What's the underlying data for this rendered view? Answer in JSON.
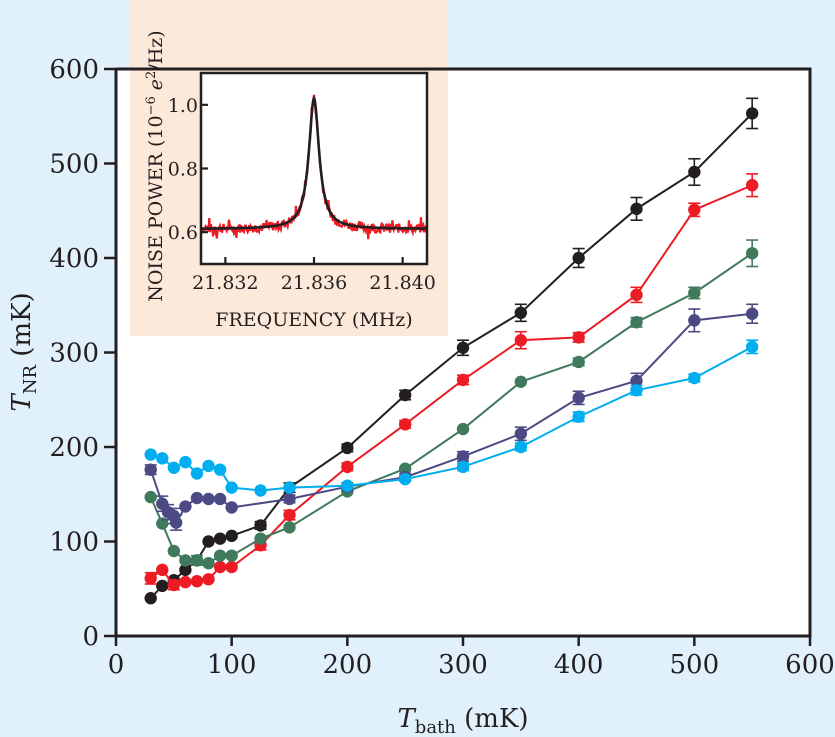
{
  "chart_data": {
    "type": "line",
    "title": "",
    "xlabel": "T_bath (mK)",
    "xlabel_main": "T",
    "xlabel_sub": "bath",
    "xlabel_unit": " (mK)",
    "ylabel": "T_NR (mK)",
    "ylabel_main": "T",
    "ylabel_sub": "NR",
    "ylabel_unit": " (mK)",
    "xlim": [
      0,
      600
    ],
    "ylim": [
      0,
      600
    ],
    "xticks": [
      0,
      100,
      200,
      300,
      400,
      500,
      600
    ],
    "yticks": [
      0,
      100,
      200,
      300,
      400,
      500,
      600
    ],
    "xtick_labels": [
      "0",
      "100",
      "200",
      "300",
      "400",
      "500",
      "600"
    ],
    "ytick_labels": [
      "0",
      "100",
      "200",
      "300",
      "400",
      "500",
      "600"
    ],
    "grid": false,
    "legend": "none",
    "series": [
      {
        "name": "black",
        "color": "#231f20",
        "points": [
          [
            30,
            40
          ],
          [
            40,
            53
          ],
          [
            50,
            59
          ],
          [
            60,
            70
          ],
          [
            70,
            80
          ],
          [
            80,
            100
          ],
          [
            90,
            103
          ],
          [
            100,
            106
          ],
          [
            125,
            117
          ],
          [
            150,
            157
          ],
          [
            200,
            199
          ],
          [
            250,
            255
          ],
          [
            300,
            305
          ],
          [
            350,
            342
          ],
          [
            400,
            400
          ],
          [
            450,
            452
          ],
          [
            500,
            491
          ],
          [
            550,
            553
          ]
        ],
        "errors": [
          0,
          0,
          0,
          0,
          0,
          0,
          0,
          0,
          4,
          5,
          4,
          5,
          8,
          9,
          10,
          12,
          14,
          16
        ]
      },
      {
        "name": "red",
        "color": "#ed1c24",
        "points": [
          [
            30,
            61
          ],
          [
            40,
            70
          ],
          [
            50,
            54
          ],
          [
            60,
            57
          ],
          [
            70,
            58
          ],
          [
            80,
            60
          ],
          [
            90,
            73
          ],
          [
            100,
            73
          ],
          [
            125,
            96
          ],
          [
            150,
            128
          ],
          [
            200,
            179
          ],
          [
            250,
            224
          ],
          [
            300,
            271
          ],
          [
            350,
            313
          ],
          [
            400,
            316
          ],
          [
            450,
            361
          ],
          [
            500,
            451
          ],
          [
            550,
            477
          ]
        ],
        "errors": [
          6,
          0,
          5,
          0,
          0,
          0,
          0,
          0,
          5,
          5,
          4,
          4,
          5,
          9,
          5,
          8,
          7,
          12
        ]
      },
      {
        "name": "green",
        "color": "#3f7a5c",
        "points": [
          [
            30,
            147
          ],
          [
            40,
            119
          ],
          [
            50,
            90
          ],
          [
            60,
            80
          ],
          [
            70,
            80
          ],
          [
            80,
            77
          ],
          [
            90,
            85
          ],
          [
            100,
            85
          ],
          [
            125,
            103
          ],
          [
            150,
            115
          ],
          [
            200,
            153
          ],
          [
            250,
            177
          ],
          [
            300,
            219
          ],
          [
            350,
            269
          ],
          [
            400,
            290
          ],
          [
            450,
            332
          ],
          [
            500,
            363
          ],
          [
            550,
            405
          ]
        ],
        "errors": [
          0,
          0,
          0,
          0,
          5,
          0,
          0,
          0,
          0,
          0,
          0,
          0,
          0,
          0,
          4,
          5,
          6,
          14
        ]
      },
      {
        "name": "purple",
        "color": "#4b4a84",
        "points": [
          [
            30,
            176
          ],
          [
            40,
            140
          ],
          [
            45,
            131
          ],
          [
            50,
            127
          ],
          [
            52,
            120
          ],
          [
            60,
            137
          ],
          [
            70,
            146
          ],
          [
            80,
            145
          ],
          [
            90,
            145
          ],
          [
            100,
            136
          ],
          [
            150,
            145
          ],
          [
            200,
            158
          ],
          [
            250,
            168
          ],
          [
            300,
            190
          ],
          [
            350,
            214
          ],
          [
            400,
            252
          ],
          [
            450,
            270
          ],
          [
            500,
            334
          ],
          [
            550,
            341
          ]
        ],
        "errors": [
          5,
          8,
          8,
          8,
          8,
          0,
          0,
          0,
          0,
          0,
          4,
          4,
          4,
          5,
          7,
          7,
          8,
          12,
          10
        ]
      },
      {
        "name": "cyan",
        "color": "#00aeef",
        "points": [
          [
            30,
            192
          ],
          [
            40,
            188
          ],
          [
            50,
            178
          ],
          [
            60,
            184
          ],
          [
            70,
            172
          ],
          [
            80,
            180
          ],
          [
            90,
            176
          ],
          [
            100,
            157
          ],
          [
            125,
            154
          ],
          [
            150,
            157
          ],
          [
            200,
            159
          ],
          [
            250,
            166
          ],
          [
            300,
            179
          ],
          [
            350,
            200
          ],
          [
            400,
            232
          ],
          [
            450,
            260
          ],
          [
            500,
            273
          ],
          [
            550,
            306
          ]
        ],
        "errors": [
          0,
          0,
          0,
          0,
          0,
          0,
          0,
          0,
          0,
          0,
          0,
          0,
          4,
          4,
          5,
          5,
          4,
          7
        ]
      }
    ],
    "inset": {
      "type": "line",
      "xlabel": "FREQUENCY (MHz)",
      "ylabel": "NOISE POWER (10^-6 e^2/Hz)",
      "ylabel_prefix": "NOISE POWER (10",
      "ylabel_exp": "−6",
      "ylabel_e": " e",
      "ylabel_e_exp": "2",
      "ylabel_suffix": "/Hz)",
      "xlim": [
        21.8309,
        21.8411
      ],
      "ylim": [
        0.5,
        1.1
      ],
      "xticks": [
        21.832,
        21.836,
        21.84
      ],
      "xtick_labels": [
        "21.832",
        "21.836",
        "21.840"
      ],
      "yticks": [
        0.6,
        0.8,
        1.0
      ],
      "ytick_labels": [
        "0.6",
        "0.8",
        "1.0"
      ],
      "fit": {
        "name": "Lorentzian fit",
        "color": "#231f20",
        "center": 21.836,
        "baseline": 0.61,
        "peak": 1.02,
        "hwhm": 0.00028
      },
      "data": {
        "name": "measured noise",
        "color": "#ed1c24",
        "noise_amplitude": 0.015
      }
    }
  },
  "colors": {
    "background": "#e1f1fb",
    "inset_background": "#fde9d9",
    "plot_background": "#ffffff",
    "axis": "#231f20"
  }
}
